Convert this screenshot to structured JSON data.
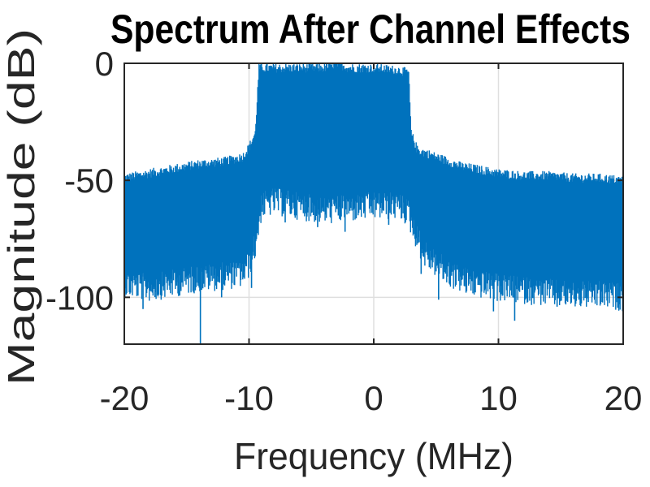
{
  "chart_data": {
    "type": "line",
    "title": "Spectrum After Channel Effects",
    "xlabel": "Frequency (MHz)",
    "ylabel": "Magnitude (dB)",
    "xlim": [
      -20,
      20
    ],
    "ylim": [
      -120,
      0
    ],
    "xticks": [
      -20,
      -10,
      0,
      10,
      20
    ],
    "yticks": [
      -100,
      -50,
      0
    ],
    "xtick_labels": [
      "-20",
      "-10",
      "0",
      "10",
      "20"
    ],
    "ytick_labels": [
      "-100",
      "-50",
      "0"
    ],
    "grid": true,
    "legend": "none",
    "series": [
      {
        "color": "#0072BD",
        "style": "noisy filled spectrum band",
        "upper_envelope": {
          "x": [
            -20,
            -18,
            -16,
            -14,
            -12,
            -10.5,
            -10,
            -9.5,
            -9.2,
            -8,
            -6,
            -4,
            -3,
            -2,
            0,
            2,
            2.8,
            3,
            3.5,
            5,
            7,
            9,
            10,
            12,
            14,
            16,
            18,
            20
          ],
          "y": [
            -49,
            -47,
            -45,
            -43,
            -42,
            -40,
            -36,
            -30,
            -2,
            -2,
            -2,
            -2,
            0,
            -2,
            -2,
            -3,
            -4,
            -30,
            -37,
            -40,
            -44,
            -46,
            -47,
            -48,
            -48,
            -49,
            -49,
            -50
          ]
        },
        "lower_envelope": {
          "x": [
            -20,
            -18,
            -16,
            -14,
            -12,
            -10.5,
            -10,
            -9.5,
            -9,
            -8,
            -6,
            -4,
            -2,
            0,
            2,
            2.8,
            3,
            4,
            6,
            8,
            10,
            12,
            14,
            16,
            18,
            20
          ],
          "y": [
            -88,
            -90,
            -88,
            -86,
            -85,
            -84,
            -80,
            -72,
            -55,
            -53,
            -55,
            -57,
            -56,
            -55,
            -55,
            -58,
            -62,
            -75,
            -84,
            -88,
            -90,
            -91,
            -92,
            -93,
            -93,
            -94
          ]
        },
        "deep_spikes": {
          "x": [
            -19.5,
            -18.5,
            -17.3,
            -15.8,
            -13.9,
            -12.2,
            -9.8,
            -7.1,
            -6.3,
            -4.5,
            -2.3,
            1.2,
            2.6,
            3.8,
            5.2,
            7.4,
            9.6,
            11.3,
            13.5,
            14.7,
            17.2,
            19.4
          ],
          "y": [
            -98,
            -105,
            -97,
            -95,
            -120,
            -100,
            -96,
            -68,
            -66,
            -70,
            -72,
            -69,
            -67,
            -90,
            -101,
            -98,
            -106,
            -110,
            -99,
            -104,
            -102,
            -100
          ]
        }
      }
    ]
  }
}
